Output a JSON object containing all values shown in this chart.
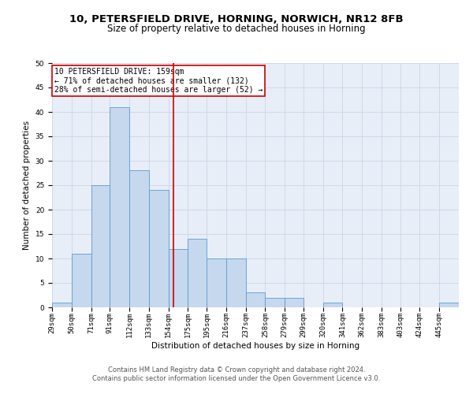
{
  "title_line1": "10, PETERSFIELD DRIVE, HORNING, NORWICH, NR12 8FB",
  "title_line2": "Size of property relative to detached houses in Horning",
  "xlabel": "Distribution of detached houses by size in Horning",
  "ylabel": "Number of detached properties",
  "bin_labels": [
    "29sqm",
    "50sqm",
    "71sqm",
    "91sqm",
    "112sqm",
    "133sqm",
    "154sqm",
    "175sqm",
    "195sqm",
    "216sqm",
    "237sqm",
    "258sqm",
    "279sqm",
    "299sqm",
    "320sqm",
    "341sqm",
    "362sqm",
    "383sqm",
    "403sqm",
    "424sqm",
    "445sqm"
  ],
  "bin_edges": [
    29,
    50,
    71,
    91,
    112,
    133,
    154,
    175,
    195,
    216,
    237,
    258,
    279,
    299,
    320,
    341,
    362,
    383,
    403,
    424,
    445,
    466
  ],
  "values": [
    1,
    11,
    25,
    41,
    28,
    24,
    12,
    14,
    10,
    10,
    3,
    2,
    2,
    0,
    1,
    0,
    0,
    0,
    0,
    0,
    1
  ],
  "bar_color": "#c5d8ed",
  "bar_edge_color": "#5b9bd5",
  "vline_x": 159,
  "vline_color": "#cc0000",
  "annotation_text": "10 PETERSFIELD DRIVE: 159sqm\n← 71% of detached houses are smaller (132)\n28% of semi-detached houses are larger (52) →",
  "annotation_box_color": "#ffffff",
  "annotation_box_edge": "#cc0000",
  "ylim": [
    0,
    50
  ],
  "yticks": [
    0,
    5,
    10,
    15,
    20,
    25,
    30,
    35,
    40,
    45,
    50
  ],
  "grid_color": "#d0d8e8",
  "bg_color": "#e8eef8",
  "footer_line1": "Contains HM Land Registry data © Crown copyright and database right 2024.",
  "footer_line2": "Contains public sector information licensed under the Open Government Licence v3.0.",
  "title_fontsize": 9.5,
  "subtitle_fontsize": 8.5,
  "axis_label_fontsize": 7.5,
  "tick_fontsize": 6.5,
  "annotation_fontsize": 7,
  "footer_fontsize": 6
}
